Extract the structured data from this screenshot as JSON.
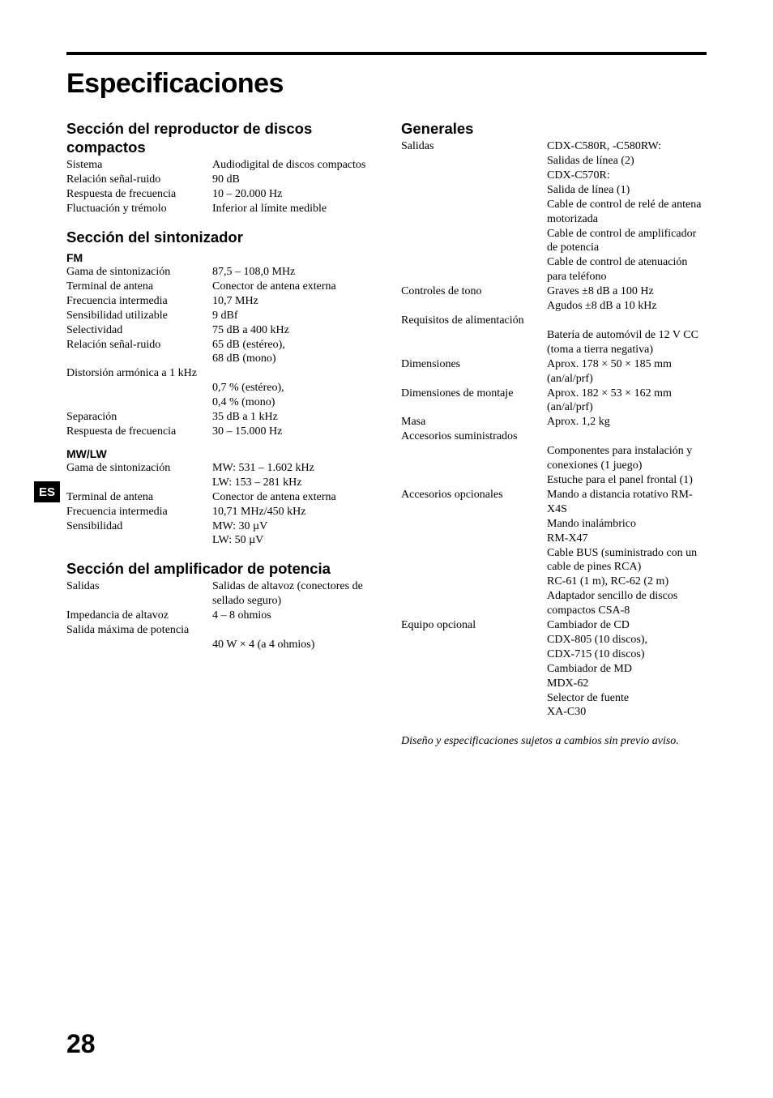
{
  "page_title": "Especificaciones",
  "es_tab": "ES",
  "page_number": "28",
  "notice": "Diseño y especificaciones sujetos a cambios sin previo aviso.",
  "sections": {
    "cd": {
      "heading": "Sección del reproductor de discos compactos",
      "rows": [
        {
          "label": "Sistema",
          "value": "Audiodigital de discos compactos"
        },
        {
          "label": "Relación señal-ruido",
          "value": "90 dB"
        },
        {
          "label": "Respuesta de frecuencia",
          "value": "10 – 20.000 Hz"
        },
        {
          "label": "Fluctuación y trémolo",
          "value": "Inferior al límite medible"
        }
      ]
    },
    "tuner": {
      "heading": "Sección del sintonizador",
      "fm_heading": "FM",
      "fm_rows": [
        {
          "label": "Gama de sintonización",
          "value": "87,5 – 108,0 MHz"
        },
        {
          "label": "Terminal de antena",
          "value": "Conector de antena externa"
        },
        {
          "label": "Frecuencia intermedia",
          "value": "10,7 MHz"
        },
        {
          "label": "Sensibilidad utilizable",
          "value": "9 dBf"
        },
        {
          "label": "Selectividad",
          "value": "75 dB a 400 kHz"
        },
        {
          "label": "Relación señal-ruido",
          "value": "65 dB (estéreo),\n68 dB (mono)"
        }
      ],
      "fm_full": {
        "label": "Distorsión armónica a 1 kHz",
        "value": "0,7 % (estéreo),\n0,4 % (mono)"
      },
      "fm_rows2": [
        {
          "label": "Separación",
          "value": "35 dB a 1 kHz"
        },
        {
          "label": "Respuesta de frecuencia",
          "value": "30 – 15.000 Hz"
        }
      ],
      "mwlw_heading": "MW/LW",
      "mwlw_rows": [
        {
          "label": "Gama de sintonización",
          "value": "MW: 531 – 1.602 kHz\nLW: 153 – 281 kHz"
        },
        {
          "label": "Terminal de antena",
          "value": "Conector de antena externa"
        },
        {
          "label": "Frecuencia intermedia",
          "value": "10,71 MHz/450 kHz"
        },
        {
          "label": "Sensibilidad",
          "value": "MW: 30 µV\nLW: 50 µV"
        }
      ]
    },
    "amp": {
      "heading": "Sección del amplificador de potencia",
      "rows": [
        {
          "label": "Salidas",
          "value": "Salidas de altavoz (conectores de sellado seguro)"
        },
        {
          "label": "Impedancia de altavoz",
          "value": "4 – 8 ohmios"
        }
      ],
      "full": {
        "label": "Salida máxima de potencia",
        "value": "40 W × 4 (a 4 ohmios)"
      }
    },
    "general": {
      "heading": "Generales",
      "rows1": [
        {
          "label": "Salidas",
          "value": "CDX-C580R, -C580RW:\nSalidas de línea (2)\nCDX-C570R:\nSalida de línea (1)\nCable de control de relé de antena motorizada\nCable de control de amplificador de potencia\nCable de control de atenuación para teléfono"
        },
        {
          "label": "Controles de tono",
          "value": "Graves ±8 dB a 100 Hz\nAgudos ±8 dB a 10 kHz"
        }
      ],
      "req_full": {
        "label": "Requisitos de alimentación",
        "value": "Batería de automóvil de 12 V CC (toma a tierra negativa)"
      },
      "rows2": [
        {
          "label": "Dimensiones",
          "value": "Aprox. 178 × 50 × 185 mm (an/al/prf)"
        },
        {
          "label": "Dimensiones de montaje",
          "value": "Aprox. 182 × 53 × 162 mm (an/al/prf)"
        },
        {
          "label": "Masa",
          "value": "Aprox. 1,2 kg"
        }
      ],
      "acc_full": {
        "label": "Accesorios suministrados",
        "value": "Componentes para instalación y conexiones (1 juego)\nEstuche para el panel frontal (1)"
      },
      "rows3": [
        {
          "label": "Accesorios opcionales",
          "value": "Mando a distancia rotativo RM-X4S\nMando inalámbrico\nRM-X47\nCable BUS (suministrado con un cable de pines RCA)\nRC-61 (1 m), RC-62 (2 m)\nAdaptador sencillo de discos compactos CSA-8"
        },
        {
          "label": "Equipo opcional",
          "value": "Cambiador de CD\n  CDX-805 (10 discos),\n  CDX-715 (10 discos)\nCambiador de MD\n  MDX-62\nSelector de fuente\n  XA-C30"
        }
      ]
    }
  }
}
